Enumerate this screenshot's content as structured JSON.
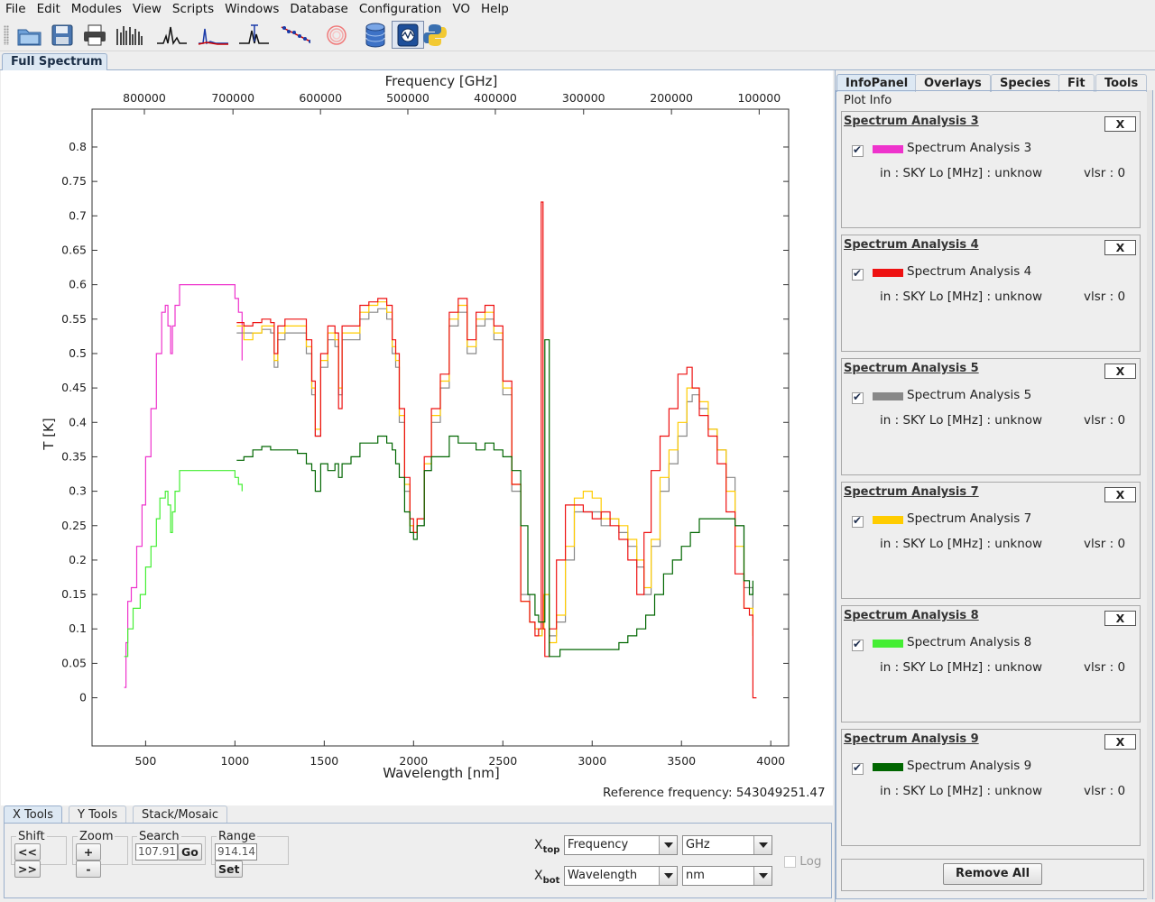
{
  "menu": [
    "File",
    "Edit",
    "Modules",
    "View",
    "Scripts",
    "Windows",
    "Database",
    "Configuration",
    "VO",
    "Help"
  ],
  "toolbar_icons": [
    "open-folder-icon",
    "save-disk-icon",
    "print-icon",
    "full-spectrum-icon",
    "spectrum-line-icon",
    "spectrum-fit-icon",
    "line-identification-icon",
    "rotational-diagram-icon",
    "ring-icon",
    "database-icon",
    "lomb-scargle-icon",
    "python-icon"
  ],
  "main_tab": "Full Spectrum",
  "plot": {
    "top_axis_title": "Frequency [GHz]",
    "bottom_axis_title": "Wavelength [nm]",
    "y_axis_title": "T [K]"
  },
  "chart_data": {
    "type": "line",
    "title": "",
    "xlabel": "Wavelength [nm]",
    "ylabel": "T [K]",
    "x2label": "Frequency [GHz]",
    "xlim": [
      200,
      4100
    ],
    "ylim": [
      -0.07,
      0.855
    ],
    "grid": false,
    "xticks": [
      500,
      1000,
      1500,
      2000,
      2500,
      3000,
      3500,
      4000
    ],
    "yticks": [
      0,
      0.05,
      0.1,
      0.15,
      0.2,
      0.25,
      0.3,
      0.35,
      0.4,
      0.45,
      0.5,
      0.55,
      0.6,
      0.65,
      0.7,
      0.75,
      0.8
    ],
    "yticks_labels": [
      "0",
      "0.05",
      "0.1",
      "0.15",
      "0.2",
      "0.25",
      "0.3",
      "0.35",
      "0.4",
      "0.45",
      "0.5",
      "0.55",
      "0.6",
      "0.65",
      "0.7",
      "0.75",
      "0.8"
    ],
    "x2ticks": [
      {
        "label": "800000",
        "x_nm": 493
      },
      {
        "label": "700000",
        "x_nm": 989
      },
      {
        "label": "600000",
        "x_nm": 1479
      },
      {
        "label": "500000",
        "x_nm": 1968
      },
      {
        "label": "400000",
        "x_nm": 2458
      },
      {
        "label": "300000",
        "x_nm": 2952
      },
      {
        "label": "200000",
        "x_nm": 3444
      },
      {
        "label": "100000",
        "x_nm": 3935
      }
    ],
    "series": [
      {
        "name": "Spectrum Analysis 3",
        "color": "#ee33cc",
        "x": [
          380,
          390,
          400,
          420,
          450,
          480,
          500,
          530,
          560,
          590,
          610,
          625,
          640,
          650,
          665,
          690,
          720,
          780,
          840,
          900,
          960,
          1000,
          1020,
          1040
        ],
        "y": [
          0.015,
          0.08,
          0.14,
          0.16,
          0.22,
          0.28,
          0.35,
          0.42,
          0.5,
          0.56,
          0.57,
          0.54,
          0.5,
          0.54,
          0.57,
          0.6,
          0.6,
          0.6,
          0.6,
          0.6,
          0.6,
          0.58,
          0.56,
          0.49
        ]
      },
      {
        "name": "Spectrum Analysis 8",
        "color": "#44ee33",
        "x": [
          380,
          400,
          430,
          470,
          500,
          530,
          560,
          580,
          610,
          625,
          640,
          650,
          665,
          690,
          720,
          780,
          840,
          900,
          960,
          1000,
          1020,
          1040
        ],
        "y": [
          0.06,
          0.1,
          0.13,
          0.15,
          0.19,
          0.22,
          0.26,
          0.29,
          0.3,
          0.28,
          0.24,
          0.27,
          0.3,
          0.33,
          0.33,
          0.33,
          0.33,
          0.33,
          0.33,
          0.32,
          0.31,
          0.3
        ]
      },
      {
        "name": "Spectrum Analysis 5",
        "color": "#888888",
        "x": [
          1010,
          1050,
          1100,
          1150,
          1200,
          1220,
          1240,
          1280,
          1320,
          1360,
          1400,
          1430,
          1450,
          1480,
          1520,
          1560,
          1580,
          1600,
          1640,
          1700,
          1750,
          1800,
          1850,
          1880,
          1900,
          1920,
          1950,
          1980,
          2000,
          2020,
          2060,
          2100,
          2150,
          2200,
          2250,
          2300,
          2350,
          2400,
          2450,
          2500,
          2550,
          2600,
          2650,
          2680,
          2700,
          2720,
          2730,
          2760,
          2800,
          2850,
          2900,
          2950,
          3000,
          3050,
          3100,
          3150,
          3200,
          3250,
          3290,
          3330,
          3380,
          3430,
          3480,
          3530,
          3560,
          3600,
          3650,
          3700,
          3750,
          3800,
          3850,
          3900
        ],
        "y": [
          0.53,
          0.53,
          0.53,
          0.535,
          0.53,
          0.48,
          0.52,
          0.53,
          0.53,
          0.53,
          0.5,
          0.44,
          0.38,
          0.48,
          0.52,
          0.51,
          0.44,
          0.52,
          0.52,
          0.55,
          0.56,
          0.565,
          0.55,
          0.5,
          0.48,
          0.4,
          0.3,
          0.25,
          0.24,
          0.25,
          0.33,
          0.4,
          0.45,
          0.54,
          0.56,
          0.5,
          0.54,
          0.55,
          0.52,
          0.44,
          0.3,
          0.15,
          0.11,
          0.1,
          0.09,
          0.1,
          0.15,
          0.09,
          0.11,
          0.2,
          0.27,
          0.27,
          0.27,
          0.25,
          0.26,
          0.24,
          0.22,
          0.19,
          0.15,
          0.22,
          0.3,
          0.34,
          0.38,
          0.43,
          0.44,
          0.42,
          0.39,
          0.36,
          0.32,
          0.25,
          0.16,
          0.11
        ]
      },
      {
        "name": "Spectrum Analysis 7",
        "color": "#ffcc00",
        "x": [
          1010,
          1050,
          1100,
          1150,
          1200,
          1220,
          1240,
          1280,
          1320,
          1360,
          1400,
          1430,
          1450,
          1480,
          1520,
          1560,
          1580,
          1600,
          1640,
          1700,
          1750,
          1800,
          1850,
          1880,
          1900,
          1920,
          1950,
          1980,
          2000,
          2020,
          2060,
          2100,
          2150,
          2200,
          2250,
          2300,
          2350,
          2400,
          2450,
          2500,
          2550,
          2600,
          2650,
          2680,
          2700,
          2720,
          2730,
          2760,
          2800,
          2850,
          2900,
          2950,
          3000,
          3050,
          3100,
          3150,
          3200,
          3250,
          3290,
          3330,
          3380,
          3430,
          3480,
          3530,
          3560,
          3600,
          3650,
          3700,
          3750,
          3800,
          3850,
          3900
        ],
        "y": [
          0.54,
          0.52,
          0.53,
          0.54,
          0.54,
          0.49,
          0.53,
          0.54,
          0.54,
          0.54,
          0.51,
          0.45,
          0.39,
          0.49,
          0.53,
          0.52,
          0.45,
          0.53,
          0.53,
          0.56,
          0.57,
          0.575,
          0.56,
          0.51,
          0.49,
          0.41,
          0.31,
          0.25,
          0.24,
          0.26,
          0.34,
          0.41,
          0.46,
          0.55,
          0.57,
          0.51,
          0.55,
          0.56,
          0.53,
          0.45,
          0.31,
          0.14,
          0.11,
          0.1,
          0.09,
          0.1,
          0.15,
          0.08,
          0.12,
          0.22,
          0.29,
          0.3,
          0.29,
          0.26,
          0.26,
          0.25,
          0.23,
          0.2,
          0.16,
          0.23,
          0.32,
          0.36,
          0.4,
          0.45,
          0.45,
          0.43,
          0.39,
          0.36,
          0.3,
          0.22,
          0.13,
          0.09
        ]
      },
      {
        "name": "Spectrum Analysis 4",
        "color": "#ee1111",
        "x": [
          1010,
          1050,
          1100,
          1150,
          1200,
          1220,
          1240,
          1280,
          1320,
          1360,
          1400,
          1430,
          1450,
          1480,
          1520,
          1560,
          1580,
          1600,
          1640,
          1700,
          1750,
          1800,
          1850,
          1880,
          1900,
          1920,
          1950,
          1980,
          2000,
          2020,
          2060,
          2100,
          2150,
          2200,
          2250,
          2300,
          2350,
          2400,
          2450,
          2500,
          2550,
          2600,
          2650,
          2680,
          2700,
          2715,
          2725,
          2735,
          2760,
          2800,
          2850,
          2900,
          2950,
          3000,
          3050,
          3100,
          3150,
          3200,
          3250,
          3290,
          3330,
          3380,
          3430,
          3480,
          3530,
          3560,
          3600,
          3650,
          3700,
          3750,
          3800,
          3850,
          3880,
          3900,
          3920
        ],
        "y": [
          0.545,
          0.54,
          0.545,
          0.55,
          0.545,
          0.5,
          0.54,
          0.55,
          0.55,
          0.55,
          0.52,
          0.46,
          0.38,
          0.5,
          0.54,
          0.53,
          0.42,
          0.54,
          0.54,
          0.57,
          0.575,
          0.58,
          0.57,
          0.52,
          0.5,
          0.42,
          0.32,
          0.26,
          0.24,
          0.26,
          0.35,
          0.42,
          0.47,
          0.56,
          0.58,
          0.52,
          0.56,
          0.57,
          0.54,
          0.46,
          0.31,
          0.14,
          0.11,
          0.09,
          0.1,
          0.72,
          0.1,
          0.06,
          0.1,
          0.2,
          0.28,
          0.28,
          0.27,
          0.26,
          0.27,
          0.25,
          0.23,
          0.2,
          0.15,
          0.24,
          0.33,
          0.38,
          0.42,
          0.47,
          0.48,
          0.45,
          0.41,
          0.38,
          0.34,
          0.27,
          0.18,
          0.13,
          0.12,
          0.0,
          0.0
        ]
      },
      {
        "name": "Spectrum Analysis 9",
        "color": "#006600",
        "x": [
          1010,
          1050,
          1100,
          1150,
          1200,
          1250,
          1300,
          1350,
          1400,
          1430,
          1450,
          1480,
          1520,
          1560,
          1580,
          1600,
          1650,
          1700,
          1750,
          1800,
          1850,
          1880,
          1900,
          1920,
          1950,
          1980,
          2000,
          2020,
          2060,
          2100,
          2150,
          2200,
          2250,
          2300,
          2350,
          2400,
          2450,
          2500,
          2550,
          2600,
          2640,
          2680,
          2700,
          2730,
          2735,
          2760,
          2790,
          2820,
          2850,
          2900,
          2950,
          3000,
          3050,
          3100,
          3150,
          3200,
          3250,
          3300,
          3350,
          3400,
          3450,
          3500,
          3550,
          3600,
          3650,
          3700,
          3750,
          3800,
          3850,
          3880,
          3900
        ],
        "y": [
          0.345,
          0.35,
          0.36,
          0.365,
          0.36,
          0.36,
          0.36,
          0.355,
          0.34,
          0.33,
          0.3,
          0.34,
          0.33,
          0.34,
          0.32,
          0.34,
          0.35,
          0.37,
          0.37,
          0.38,
          0.37,
          0.36,
          0.34,
          0.32,
          0.27,
          0.24,
          0.23,
          0.25,
          0.33,
          0.35,
          0.35,
          0.38,
          0.37,
          0.37,
          0.36,
          0.37,
          0.36,
          0.35,
          0.33,
          0.25,
          0.15,
          0.12,
          0.11,
          0.11,
          0.52,
          0.06,
          0.06,
          0.07,
          0.07,
          0.07,
          0.07,
          0.07,
          0.07,
          0.07,
          0.08,
          0.09,
          0.1,
          0.12,
          0.15,
          0.18,
          0.2,
          0.22,
          0.24,
          0.26,
          0.26,
          0.26,
          0.26,
          0.25,
          0.17,
          0.15,
          0.17
        ]
      }
    ]
  },
  "reference_frequency": "Reference frequency: 543049251.47",
  "bottom_tabs": [
    "X Tools",
    "Y Tools",
    "Stack/Mosaic"
  ],
  "xtools": {
    "shift_label": "Shift",
    "shift_left": "<<",
    "shift_right": ">>",
    "zoom_label": "Zoom",
    "zoom_in": "+",
    "zoom_out": "-",
    "search_label": "Search",
    "search_value": "107.91",
    "go": "Go",
    "range_label": "Range",
    "range_value": "914.14",
    "set": "Set",
    "xtop_label": "X",
    "xtop_sub": "top",
    "xtop_type": "Frequency",
    "xtop_unit": "GHz",
    "xbot_label": "X",
    "xbot_sub": "bot",
    "xbot_type": "Wavelength",
    "xbot_unit": "nm",
    "log_label": "Log"
  },
  "right_tabs": [
    "InfoPanel",
    "Overlays",
    "Species",
    "Fit",
    "Tools"
  ],
  "plot_info_title": "Plot Info",
  "cards": [
    {
      "title": "Spectrum Analysis 3",
      "name": "Spectrum Analysis 3",
      "color": "#ee33cc",
      "meta": "in : SKY Lo [MHz] : unknow",
      "vlsr": "vlsr : 0",
      "close": "X"
    },
    {
      "title": "Spectrum Analysis 4",
      "name": "Spectrum Analysis 4",
      "color": "#ee1111",
      "meta": "in : SKY Lo [MHz] : unknow",
      "vlsr": "vlsr : 0",
      "close": "X"
    },
    {
      "title": "Spectrum Analysis 5",
      "name": "Spectrum Analysis 5",
      "color": "#888888",
      "meta": "in : SKY Lo [MHz] : unknow",
      "vlsr": "vlsr : 0",
      "close": "X"
    },
    {
      "title": "Spectrum Analysis 7",
      "name": "Spectrum Analysis 7",
      "color": "#ffcc00",
      "meta": "in : SKY Lo [MHz] : unknow",
      "vlsr": "vlsr : 0",
      "close": "X"
    },
    {
      "title": "Spectrum Analysis 8",
      "name": "Spectrum Analysis 8",
      "color": "#44ee33",
      "meta": "in : SKY Lo [MHz] : unknow",
      "vlsr": "vlsr : 0",
      "close": "X"
    },
    {
      "title": "Spectrum Analysis 9",
      "name": "Spectrum Analysis 9",
      "color": "#006600",
      "meta": "in : SKY Lo [MHz] : unknow",
      "vlsr": "vlsr : 0",
      "close": "X"
    }
  ],
  "remove_all": "Remove All"
}
